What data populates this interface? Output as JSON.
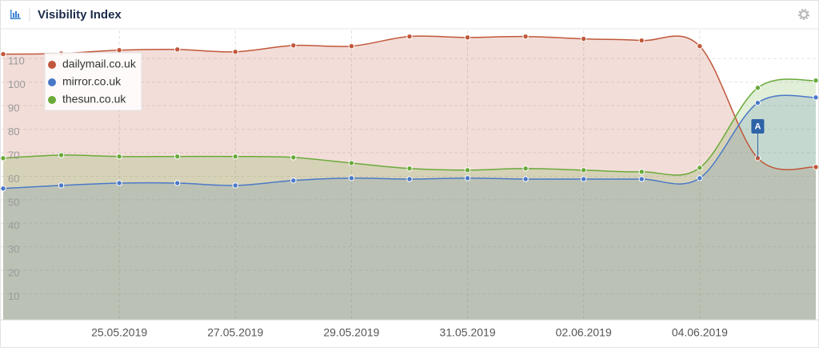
{
  "chart_data": {
    "type": "line",
    "title": "Visibility Index",
    "categories": [
      null,
      null,
      "25.05.2019",
      null,
      "27.05.2019",
      null,
      "29.05.2019",
      null,
      "31.05.2019",
      null,
      "02.06.2019",
      null,
      "04.06.2019",
      null,
      null
    ],
    "series": [
      {
        "name": "dailymail.co.uk",
        "color": "#c0573a",
        "values": [
          111.9,
          112.2,
          113.6,
          113.9,
          112.9,
          115.6,
          115.3,
          119.4,
          119.0,
          119.4,
          118.4,
          117.7,
          115.3,
          67.7,
          63.9
        ]
      },
      {
        "name": "mirror.co.uk",
        "color": "#4a78c8",
        "values": [
          54.8,
          56.1,
          57.1,
          57.1,
          56.1,
          58.2,
          59.2,
          58.8,
          59.2,
          58.8,
          58.8,
          58.8,
          59.2,
          91.2,
          93.5
        ]
      },
      {
        "name": "thesun.co.uk",
        "color": "#6aaa3a",
        "values": [
          67.7,
          69.0,
          68.4,
          68.4,
          68.4,
          68.0,
          65.6,
          63.3,
          62.6,
          63.3,
          62.6,
          61.9,
          63.6,
          97.6,
          100.7
        ]
      }
    ],
    "annotations": [
      {
        "label": "A",
        "index": 13
      }
    ],
    "ylim": [
      0,
      122
    ],
    "yticks": [
      10,
      20,
      30,
      40,
      50,
      60,
      70,
      80,
      90,
      100,
      110
    ],
    "grid": true,
    "legend": "upper left"
  }
}
